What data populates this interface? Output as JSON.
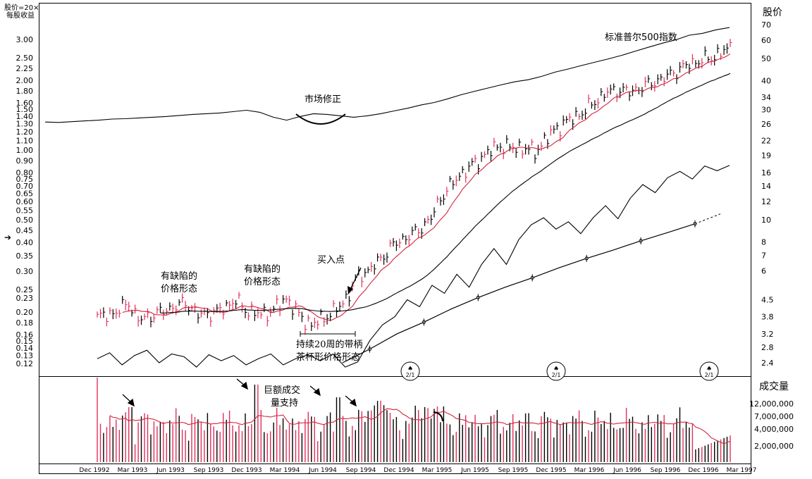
{
  "chart_data": {
    "type": "line",
    "left_axis": {
      "title_line1": "股价=20×",
      "title_line2": "每股收益",
      "ticks": [
        "3.00",
        "2.50",
        "2.25",
        "2.00",
        "1.80",
        "1.60",
        "1.50",
        "1.40",
        "1.30",
        "1.20",
        "1.10",
        "1.00",
        "0.90",
        "0.80",
        "0.75",
        "0.70",
        "0.65",
        "0.60",
        "0.55",
        "0.50",
        "0.45",
        "0.40",
        "0.35",
        "0.30",
        "0.25",
        "0.23",
        "0.20",
        "0.18",
        "0.16",
        "0.15",
        "0.14",
        "0.13",
        "0.12"
      ],
      "scale": "log",
      "arrow_value": 0.41
    },
    "right_axis": {
      "title": "股价",
      "ticks": [
        "70",
        "60",
        "50",
        "40",
        "34",
        "30",
        "26",
        "22",
        "19",
        "16",
        "14",
        "12",
        "10",
        "8",
        "7",
        "6",
        "4.5",
        "3.8",
        "3.2",
        "2.8",
        "2.4"
      ],
      "scale": "log"
    },
    "volume_axis": {
      "title": "成交量",
      "ticks": [
        "12,000,000",
        "7,000,000",
        "4,000,000",
        "2,000,000"
      ]
    },
    "x_labels": [
      "Dec 1992",
      "Mar 1993",
      "Jun 1993",
      "Sep 1993",
      "Dec 1993",
      "Mar 1994",
      "Jun 1994",
      "Sep 1994",
      "Dec 1994",
      "Mar 1995",
      "Jun 1995",
      "Sep 1995",
      "Dec 1995",
      "Mar 1996",
      "Jun 1996",
      "Sep 1996",
      "Dec 1996",
      "Mar 1997"
    ],
    "series": [
      {
        "name": "标准普尔500指数",
        "values": [
          26.5,
          26.4,
          26.6,
          26.8,
          27,
          27.3,
          27.4,
          27.6,
          27.8,
          28,
          28.3,
          28.6,
          28.8,
          29,
          29.4,
          29.8,
          29.2,
          27.8,
          27,
          28,
          28.8,
          28.6,
          28.2,
          27.8,
          28.2,
          28.8,
          29.6,
          30.4,
          31.4,
          32.2,
          33.4,
          34.8,
          36,
          37.2,
          38.4,
          39.6,
          40.4,
          41.8,
          43.6,
          45,
          46.6,
          48.2,
          49.8,
          51.6,
          53.8,
          56,
          58.2,
          60.2,
          63,
          64.2,
          66.5,
          68
        ]
      },
      {
        "values": [
          2.5,
          2.65,
          2.35,
          2.58,
          2.72,
          2.4,
          2.62,
          2.55,
          2.3,
          2.6,
          2.45,
          2.58,
          2.35,
          2.5,
          2.62,
          2.35,
          2.5,
          2.6,
          2.45,
          2.62,
          2.3,
          2.42,
          3.0,
          3.5,
          3.8,
          4.5,
          4.2,
          5.2,
          4.8,
          5.8,
          5.1,
          6.4,
          7.5,
          6.4,
          8.2,
          9.5,
          10.2,
          9.1,
          9.8,
          8.7,
          10.2,
          11.5,
          10.1,
          12.4,
          14.2,
          13.1,
          15.2,
          16.2,
          15,
          17.1,
          16.3,
          17.2
        ]
      },
      {
        "values": [
          2.4,
          2.75,
          3.2,
          3.6,
          4.1,
          4.6,
          5.1,
          5.6,
          6.2,
          6.8,
          7.4,
          8.1,
          8.8,
          9.6
        ]
      }
    ],
    "eps_labels": [
      "2/1",
      "2/1",
      "2/1"
    ],
    "annotations": {
      "flawed_pattern_1": [
        "有缺陷的",
        "价格形态"
      ],
      "flawed_pattern_2": [
        "有缺陷的",
        "价格形态"
      ],
      "market_correction": "市场修正",
      "buy_point": "买入点",
      "cup_handle": [
        "持续20周的带柄",
        "茶杯形价格形态"
      ],
      "big_volume_support": [
        "巨额成交",
        "量支持"
      ]
    },
    "colors": {
      "up_bar": "#e0305a",
      "down_bar": "#000000",
      "moving_avg_10": "#d2233b",
      "moving_avg_40": "#000000"
    }
  }
}
